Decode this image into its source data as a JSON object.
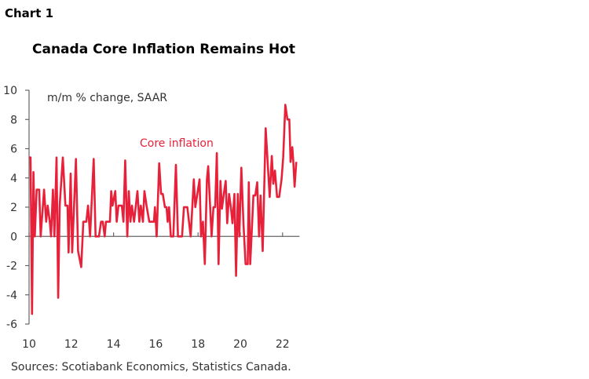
{
  "chart_label": "Chart 1",
  "chart_data": {
    "type": "line",
    "title": "Canada Core Inflation Remains Hot",
    "annotation": "m/m % change, SAAR",
    "source": "Sources: Scotiabank Economics, Statistics Canada.",
    "xlabel": "",
    "ylabel": "",
    "xlim": [
      10,
      22.8
    ],
    "ylim": [
      -6,
      10
    ],
    "x_ticks": [
      "10",
      "12",
      "14",
      "16",
      "18",
      "20",
      "22"
    ],
    "y_ticks": [
      "10",
      "8",
      "6",
      "4",
      "2",
      "0",
      "-2",
      "-4",
      "-6"
    ],
    "grid": false,
    "series": [
      {
        "name": "Core inflation",
        "color": "#e8213a",
        "points": [
          [
            10.0,
            5.4
          ],
          [
            10.07,
            5.4
          ],
          [
            10.14,
            -5.3
          ],
          [
            10.21,
            4.4
          ],
          [
            10.27,
            0
          ],
          [
            10.36,
            3.2
          ],
          [
            10.48,
            3.2
          ],
          [
            10.55,
            0
          ],
          [
            10.71,
            3.2
          ],
          [
            10.81,
            1.0
          ],
          [
            10.88,
            2.1
          ],
          [
            10.98,
            1.0
          ],
          [
            11.04,
            0
          ],
          [
            11.13,
            3.2
          ],
          [
            11.2,
            0
          ],
          [
            11.3,
            5.4
          ],
          [
            11.38,
            -4.2
          ],
          [
            11.45,
            2.1
          ],
          [
            11.6,
            5.4
          ],
          [
            11.72,
            2.1
          ],
          [
            11.82,
            2.1
          ],
          [
            11.87,
            -1.1
          ],
          [
            11.97,
            4.3
          ],
          [
            12.04,
            -1.1
          ],
          [
            12.22,
            5.3
          ],
          [
            12.32,
            -1.0
          ],
          [
            12.47,
            -2.1
          ],
          [
            12.57,
            1.0
          ],
          [
            12.71,
            1.0
          ],
          [
            12.79,
            2.1
          ],
          [
            12.89,
            0
          ],
          [
            13.06,
            5.3
          ],
          [
            13.15,
            0
          ],
          [
            13.31,
            0
          ],
          [
            13.41,
            1.0
          ],
          [
            13.49,
            1.0
          ],
          [
            13.58,
            0
          ],
          [
            13.64,
            1.0
          ],
          [
            13.83,
            1.0
          ],
          [
            13.89,
            3.1
          ],
          [
            13.95,
            2.1
          ],
          [
            14.08,
            3.1
          ],
          [
            14.15,
            1.0
          ],
          [
            14.23,
            2.1
          ],
          [
            14.39,
            2.1
          ],
          [
            14.47,
            1.0
          ],
          [
            14.55,
            5.2
          ],
          [
            14.65,
            0
          ],
          [
            14.72,
            3.1
          ],
          [
            14.8,
            1.0
          ],
          [
            14.87,
            2.1
          ],
          [
            14.97,
            1.0
          ],
          [
            15.13,
            3.1
          ],
          [
            15.22,
            1.0
          ],
          [
            15.29,
            2.1
          ],
          [
            15.39,
            1.0
          ],
          [
            15.46,
            3.1
          ],
          [
            15.56,
            2.1
          ],
          [
            15.69,
            1.0
          ],
          [
            15.79,
            1.0
          ],
          [
            15.91,
            1.0
          ],
          [
            15.96,
            2.0
          ],
          [
            16.04,
            0
          ],
          [
            16.16,
            5.0
          ],
          [
            16.25,
            2.9
          ],
          [
            16.33,
            2.9
          ],
          [
            16.43,
            2.0
          ],
          [
            16.51,
            2.0
          ],
          [
            16.56,
            1.0
          ],
          [
            16.63,
            2.0
          ],
          [
            16.71,
            0
          ],
          [
            16.83,
            0
          ],
          [
            16.95,
            4.9
          ],
          [
            17.05,
            0
          ],
          [
            17.24,
            0
          ],
          [
            17.33,
            2.0
          ],
          [
            17.49,
            2.0
          ],
          [
            17.65,
            0
          ],
          [
            17.8,
            3.9
          ],
          [
            17.87,
            2.0
          ],
          [
            18.07,
            3.9
          ],
          [
            18.14,
            0
          ],
          [
            18.23,
            1.0
          ],
          [
            18.32,
            -1.9
          ],
          [
            18.42,
            3.9
          ],
          [
            18.48,
            4.8
          ],
          [
            18.64,
            0
          ],
          [
            18.73,
            2.0
          ],
          [
            18.81,
            2.0
          ],
          [
            18.89,
            5.7
          ],
          [
            18.97,
            -1.9
          ],
          [
            19.06,
            3.8
          ],
          [
            19.13,
            1.9
          ],
          [
            19.22,
            2.9
          ],
          [
            19.31,
            3.8
          ],
          [
            19.38,
            0.9
          ],
          [
            19.47,
            2.9
          ],
          [
            19.56,
            1.9
          ],
          [
            19.63,
            0.9
          ],
          [
            19.72,
            2.9
          ],
          [
            19.8,
            -2.7
          ],
          [
            19.88,
            2.9
          ],
          [
            19.95,
            0
          ],
          [
            20.05,
            4.7
          ],
          [
            20.15,
            0.9
          ],
          [
            20.25,
            -1.9
          ],
          [
            20.35,
            -1.9
          ],
          [
            20.4,
            3.7
          ],
          [
            20.47,
            -1.9
          ],
          [
            20.62,
            2.8
          ],
          [
            20.71,
            2.8
          ],
          [
            20.8,
            3.7
          ],
          [
            20.89,
            0
          ],
          [
            20.96,
            2.8
          ],
          [
            21.06,
            -1.0
          ],
          [
            21.2,
            7.4
          ],
          [
            21.39,
            2.7
          ],
          [
            21.49,
            5.5
          ],
          [
            21.56,
            3.6
          ],
          [
            21.64,
            4.5
          ],
          [
            21.74,
            2.7
          ],
          [
            21.84,
            2.7
          ],
          [
            21.95,
            3.9
          ],
          [
            22.03,
            5.4
          ],
          [
            22.13,
            9.0
          ],
          [
            22.23,
            8.0
          ],
          [
            22.32,
            8.0
          ],
          [
            22.38,
            5.1
          ],
          [
            22.46,
            6.1
          ],
          [
            22.51,
            5.1
          ],
          [
            22.57,
            3.4
          ],
          [
            22.65,
            5.1
          ]
        ]
      }
    ]
  }
}
